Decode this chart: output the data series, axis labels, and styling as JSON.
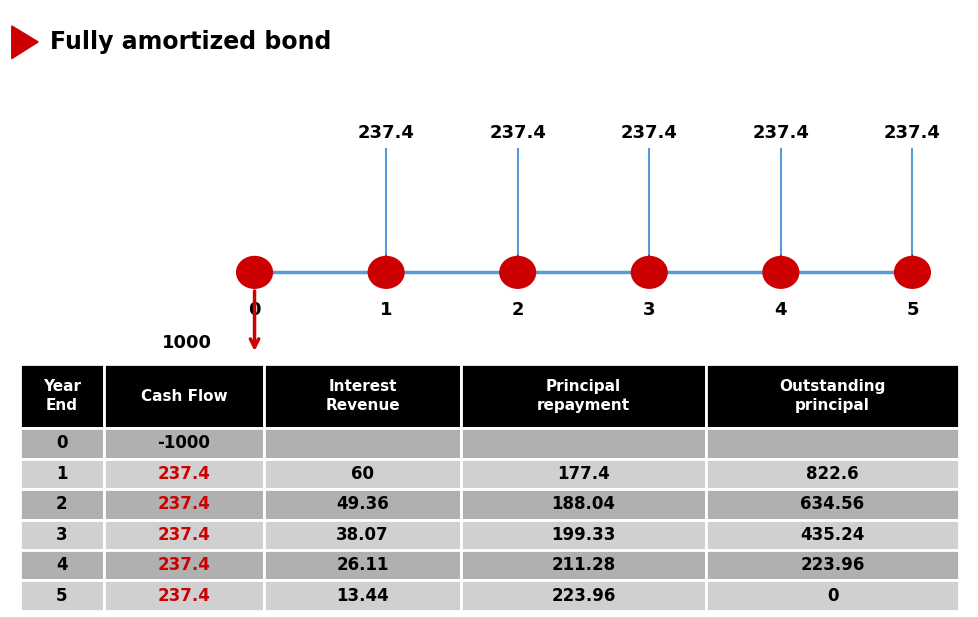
{
  "title": "Fully amortized bond",
  "timeline_years": [
    0,
    1,
    2,
    3,
    4,
    5
  ],
  "cashflow_labels": [
    "237.4",
    "237.4",
    "237.4",
    "237.4",
    "237.4"
  ],
  "initial_investment": "1000",
  "table_headers": [
    "Year\nEnd",
    "Cash Flow",
    "Interest\nRevenue",
    "Principal\nrepayment",
    "Outstanding\nprincipal"
  ],
  "table_data": [
    [
      "0",
      "-1000",
      "",
      "",
      ""
    ],
    [
      "1",
      "237.4",
      "60",
      "177.4",
      "822.6"
    ],
    [
      "2",
      "237.4",
      "49.36",
      "188.04",
      "634.56"
    ],
    [
      "3",
      "237.4",
      "38.07",
      "199.33",
      "435.24"
    ],
    [
      "4",
      "237.4",
      "26.11",
      "211.28",
      "223.96"
    ],
    [
      "5",
      "237.4",
      "13.44",
      "223.96",
      "0"
    ]
  ],
  "header_bg": "#000000",
  "header_fg": "#ffffff",
  "row_color_dark": "#b0b0b0",
  "row_color_light": "#d0d0d0",
  "cashflow_color": "#cc0000",
  "normal_text_color": "#000000",
  "timeline_color": "#5b9bd5",
  "node_color": "#cc0000",
  "title_arrow_color": "#cc0000"
}
